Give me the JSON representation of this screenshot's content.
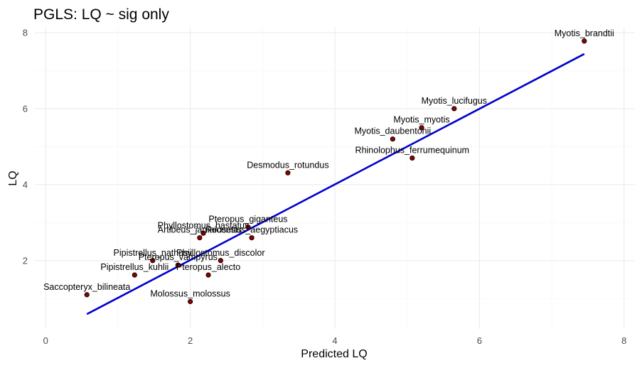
{
  "chart_data": {
    "type": "scatter",
    "title": "PGLS: LQ ~ sig only",
    "xlabel": "Predicted LQ",
    "ylabel": "LQ",
    "xlim": [
      -0.15,
      8.15
    ],
    "ylim": [
      0.2,
      8.15
    ],
    "x_ticks": [
      0,
      2,
      4,
      6,
      8
    ],
    "y_ticks": [
      2,
      4,
      6,
      8
    ],
    "x_tick_labels": [
      "0",
      "2",
      "4",
      "6",
      "8"
    ],
    "y_tick_labels": [
      "2",
      "4",
      "6",
      "8"
    ],
    "grid": true,
    "point_color": "#8b0000",
    "line_color": "#0000cd",
    "fit_line": {
      "x": [
        0.57,
        7.45
      ],
      "y": [
        0.59,
        7.44
      ]
    },
    "points": [
      {
        "label": "Myotis_brandtii",
        "x": 7.45,
        "y": 7.78
      },
      {
        "label": "Myotis_lucifugus",
        "x": 5.65,
        "y": 6.0
      },
      {
        "label": "Myotis_myotis",
        "x": 5.2,
        "y": 5.5
      },
      {
        "label": "Myotis_daubentonii",
        "x": 4.8,
        "y": 5.2
      },
      {
        "label": "Rhinolophus_ferrumequinum",
        "x": 5.07,
        "y": 4.7
      },
      {
        "label": "Desmodus_rotundus",
        "x": 3.35,
        "y": 4.31
      },
      {
        "label": "Pteropus_giganteus",
        "x": 2.8,
        "y": 2.88
      },
      {
        "label": "Phyllostomus_hastatus",
        "x": 2.18,
        "y": 2.72
      },
      {
        "label": "Artibeus_jamaicensis",
        "x": 2.13,
        "y": 2.6
      },
      {
        "label": "Rousettus_aegyptiacus",
        "x": 2.85,
        "y": 2.6
      },
      {
        "label": "Pipistrellus_nathusii",
        "x": 1.48,
        "y": 2.0
      },
      {
        "label": "Phyllostomus_discolor",
        "x": 2.42,
        "y": 2.0
      },
      {
        "label": "Pteropus_vampyrus",
        "x": 1.83,
        "y": 1.88
      },
      {
        "label": "Pipistrellus_kuhlii",
        "x": 1.23,
        "y": 1.62
      },
      {
        "label": "Pteropus_alecto",
        "x": 2.25,
        "y": 1.62
      },
      {
        "label": "Saccopteryx_bilineata",
        "x": 0.57,
        "y": 1.1
      },
      {
        "label": "Molossus_molossus",
        "x": 2.0,
        "y": 0.92
      }
    ]
  }
}
